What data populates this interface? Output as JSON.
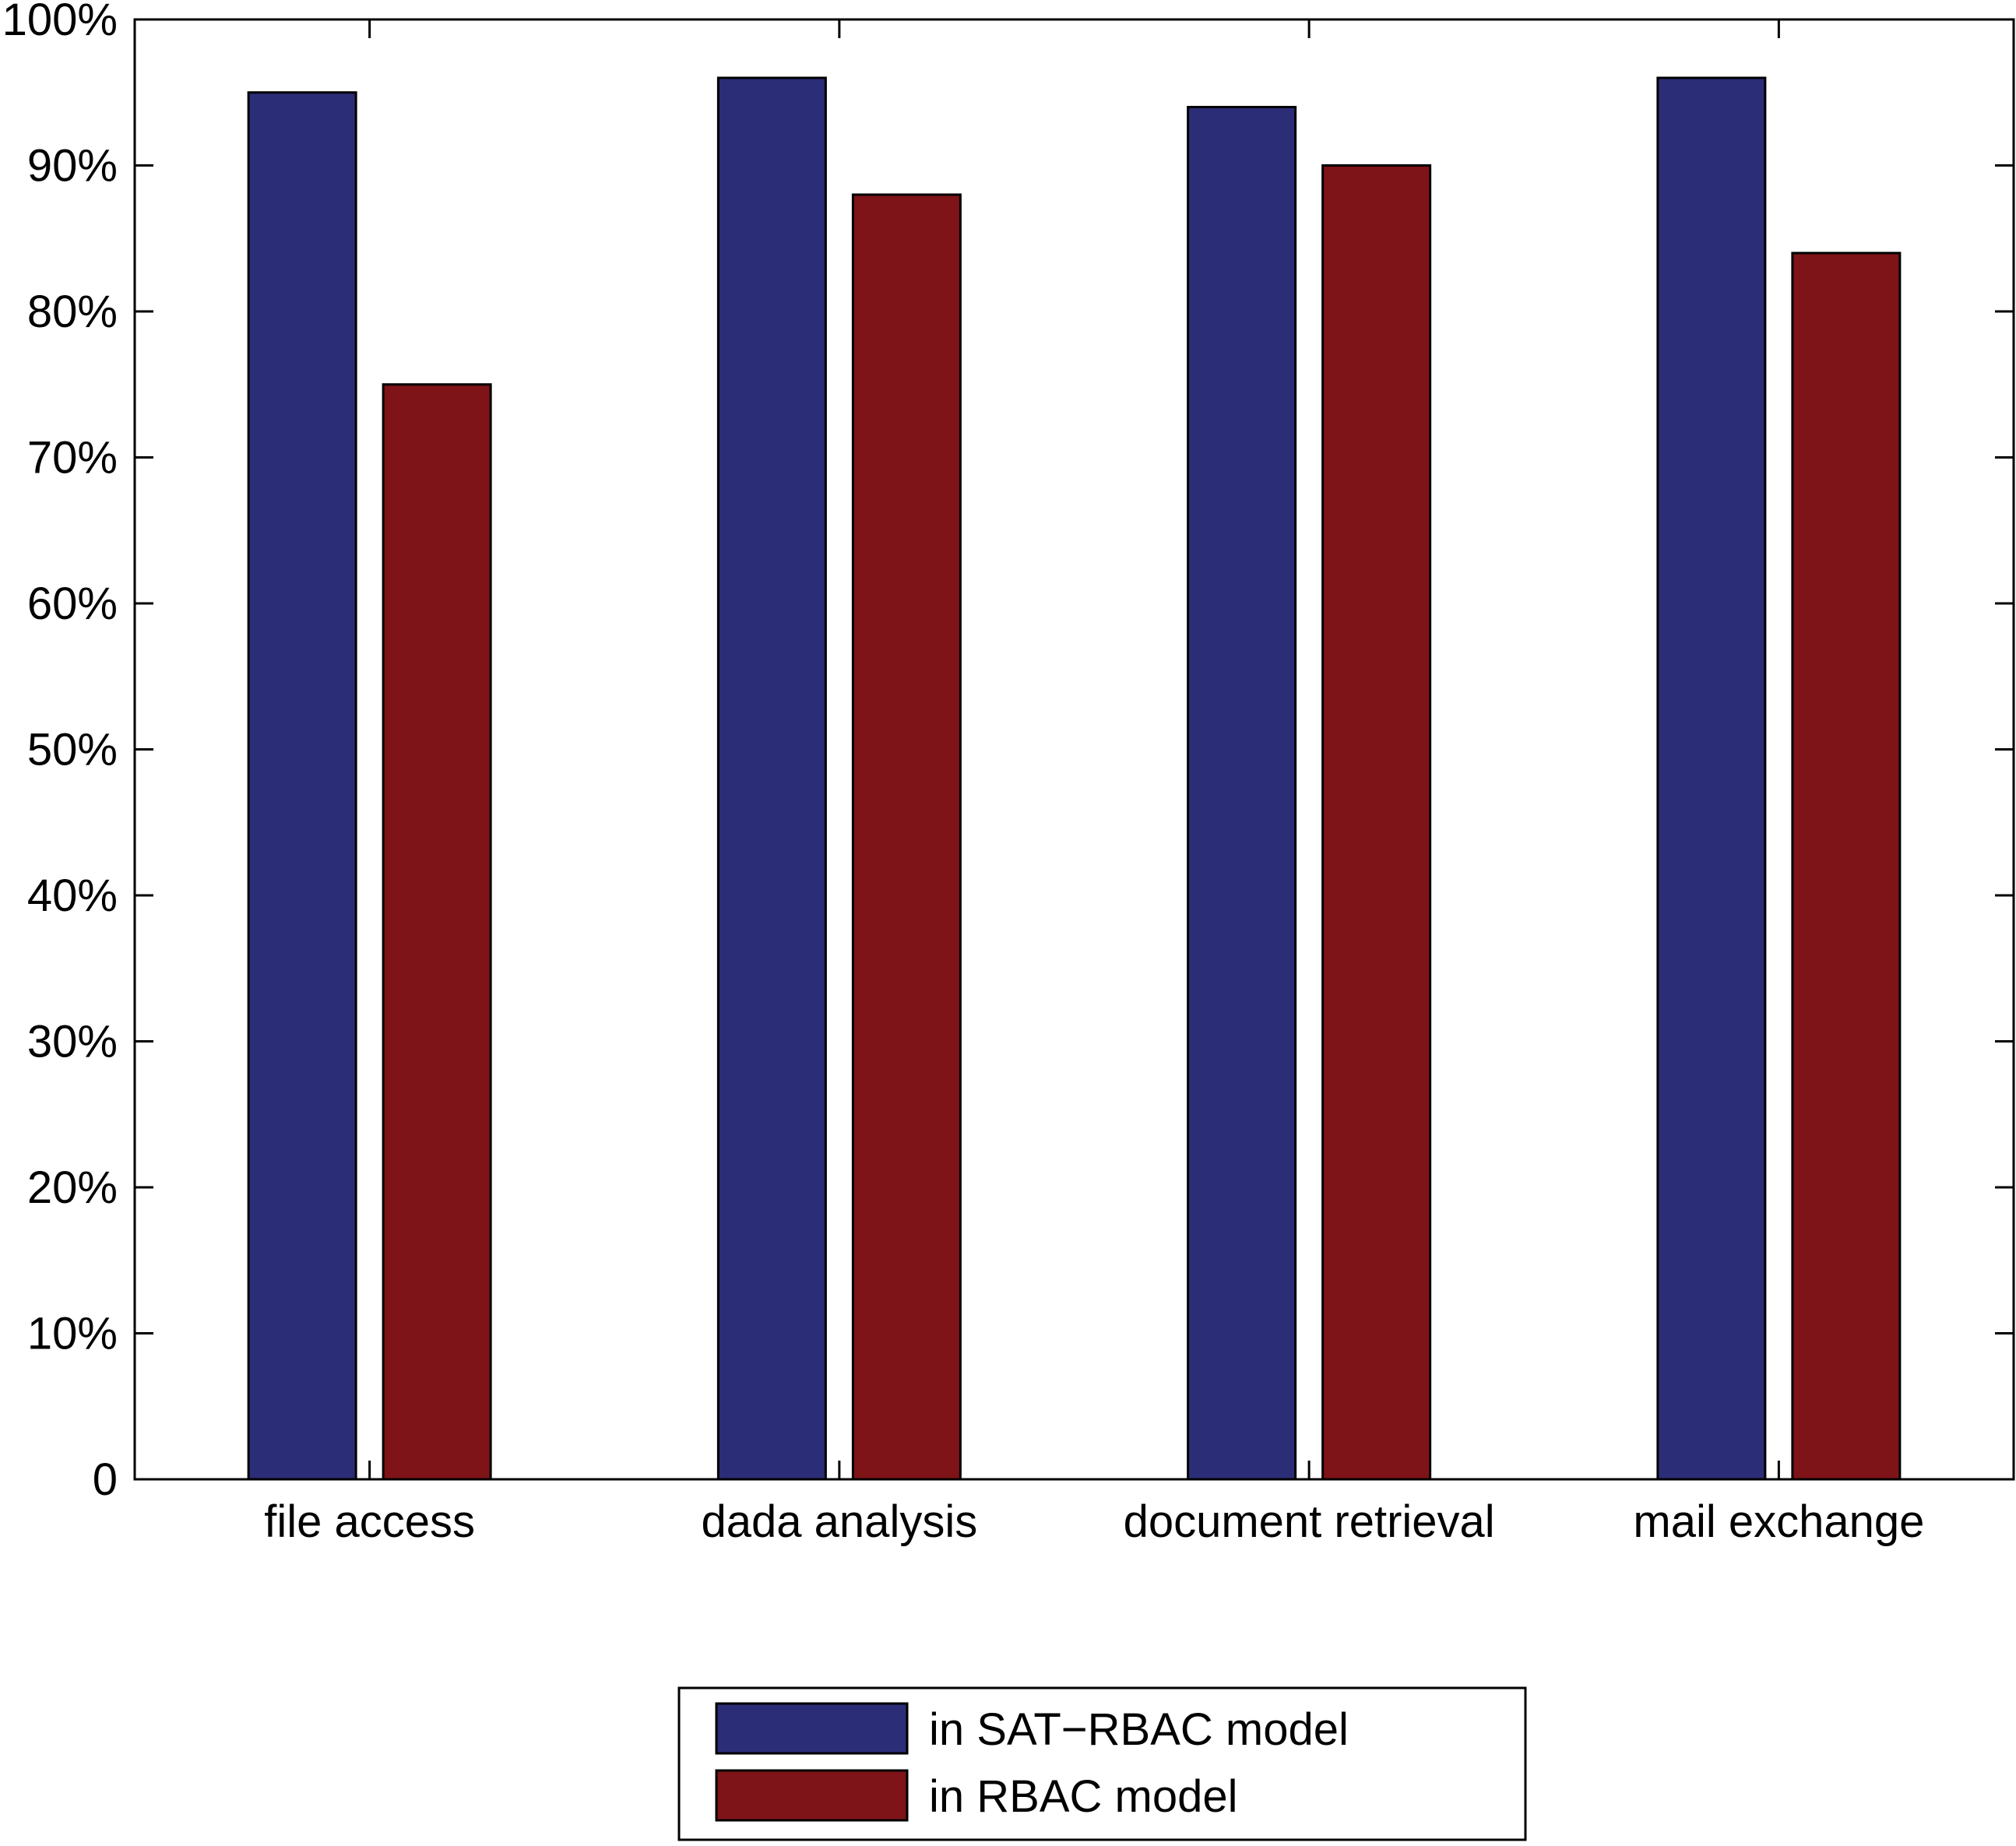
{
  "chart_data": {
    "type": "bar",
    "categories": [
      "file access",
      "dada analysis",
      "document retrieval",
      "mail exchange"
    ],
    "series": [
      {
        "name": "in SAT−RBAC model",
        "values": [
          95,
          96,
          94,
          96
        ],
        "color": "#2b2d76"
      },
      {
        "name": "in RBAC model",
        "values": [
          75,
          88,
          90,
          84
        ],
        "color": "#7e1318"
      }
    ],
    "ylim": [
      0,
      100
    ],
    "yticks": [
      0,
      10,
      20,
      30,
      40,
      50,
      60,
      70,
      80,
      90,
      100
    ],
    "ytick_labels": [
      "0",
      "10%",
      "20%",
      "30%",
      "40%",
      "50%",
      "60%",
      "70%",
      "80%",
      "90%",
      "100%"
    ],
    "grid": false,
    "legend_position": "bottom-center",
    "title": "",
    "xlabel": "",
    "ylabel": ""
  }
}
